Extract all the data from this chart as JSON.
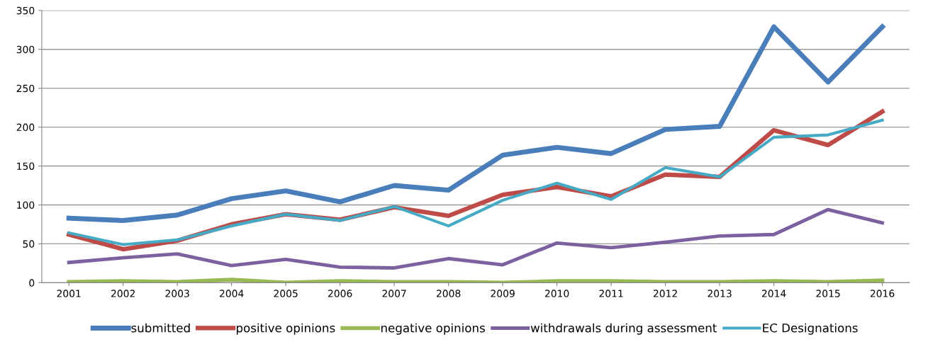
{
  "chart_data": {
    "type": "line",
    "categories": [
      "2001",
      "2002",
      "2003",
      "2004",
      "2005",
      "2006",
      "2007",
      "2008",
      "2009",
      "2010",
      "2011",
      "2012",
      "2013",
      "2014",
      "2015",
      "2016"
    ],
    "series": [
      {
        "name": "submitted",
        "color": "#4a7ebb",
        "values": [
          83,
          80,
          87,
          108,
          118,
          104,
          125,
          119,
          164,
          174,
          166,
          197,
          201,
          329,
          258,
          329
        ]
      },
      {
        "name": "positive opinions",
        "color": "#be4b48",
        "values": [
          62,
          43,
          54,
          75,
          88,
          81,
          97,
          86,
          113,
          123,
          111,
          139,
          136,
          196,
          177,
          220
        ]
      },
      {
        "name": "negative opinions",
        "color": "#98b954",
        "values": [
          1,
          2,
          1,
          4,
          0,
          2,
          1,
          1,
          0,
          2,
          2,
          1,
          1,
          2,
          1,
          3
        ]
      },
      {
        "name": "withdrawals during assessment",
        "color": "#7d60a0",
        "values": [
          26,
          32,
          37,
          22,
          30,
          20,
          19,
          31,
          23,
          51,
          45,
          52,
          60,
          62,
          94,
          77
        ]
      },
      {
        "name": "EC Designations",
        "color": "#46aac5",
        "values": [
          64,
          49,
          55,
          73,
          88,
          80,
          98,
          73,
          106,
          128,
          107,
          148,
          136,
          187,
          190,
          209
        ]
      }
    ],
    "ylim": [
      0,
      350
    ],
    "yticks": [
      0,
      50,
      100,
      150,
      200,
      250,
      300,
      350
    ],
    "grid": "y",
    "legend": "bottom",
    "marker": "none",
    "line_style": "solid"
  }
}
